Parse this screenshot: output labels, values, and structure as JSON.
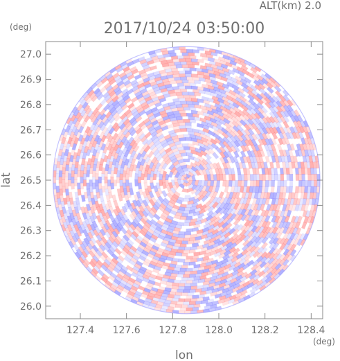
{
  "header": {
    "altitude": "ALT(km) 2.0",
    "timestamp": "2017/10/24 03:50:00"
  },
  "chart_data": {
    "type": "heatmap",
    "title": "2017/10/24 03:50:00",
    "subtitle": "ALT(km) 2.0",
    "xlabel": "lon",
    "ylabel": "lat",
    "x_unit": "(deg)",
    "y_unit": "(deg)",
    "xlim": [
      127.25,
      128.45
    ],
    "ylim": [
      25.95,
      27.05
    ],
    "x_ticks": [
      127.4,
      127.6,
      127.8,
      128.0,
      128.2,
      128.4
    ],
    "x_tick_labels": [
      "127.4",
      "127.6",
      "127.8",
      "128.0",
      "128.2",
      "128.4"
    ],
    "y_ticks": [
      26.0,
      26.1,
      26.2,
      26.3,
      26.4,
      26.5,
      26.6,
      26.7,
      26.8,
      26.9,
      27.0
    ],
    "y_tick_labels": [
      "26.0",
      "26.1",
      "26.2",
      "26.3",
      "26.4",
      "26.5",
      "26.6",
      "26.7",
      "26.8",
      "26.9",
      "27.0"
    ],
    "domain_center": [
      127.86,
      26.5
    ],
    "domain_radius_deg_lat": 0.53,
    "colors": {
      "positive": "#ff8a8a",
      "negative": "#8a8aff",
      "background": "#ffffff"
    },
    "grid": false
  }
}
